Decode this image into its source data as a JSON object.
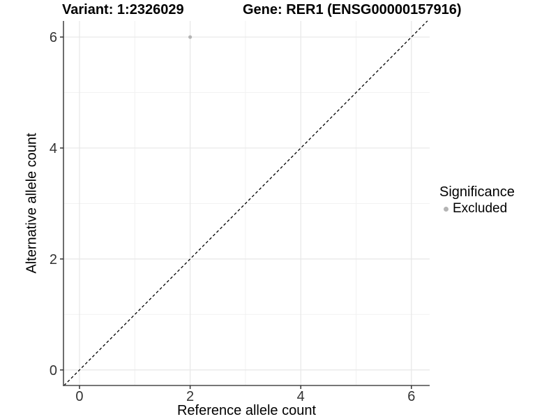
{
  "chart_data": {
    "type": "scatter",
    "title_left": "Variant: 1:2326029",
    "title_right": "Gene: RER1 (ENSG00000157916)",
    "xlabel": "Reference allele count",
    "ylabel": "Alternative allele count",
    "xlim": [
      -0.29,
      6.33
    ],
    "ylim": [
      -0.28,
      6.29
    ],
    "x_ticks": [
      0,
      2,
      4,
      6
    ],
    "y_ticks": [
      0,
      2,
      4,
      6
    ],
    "x_minor_ticks": [
      1,
      3,
      5
    ],
    "y_minor_ticks": [
      1,
      3,
      5
    ],
    "grid": true,
    "legend_position": "right",
    "series": [
      {
        "name": "Excluded",
        "color": "#b4b4b4",
        "points": [
          {
            "x": 2,
            "y": 6
          }
        ]
      }
    ],
    "reference_line": {
      "type": "identity",
      "equation": "y = x",
      "style": "dashed",
      "color": "#000000"
    }
  },
  "legend": {
    "title": "Significance",
    "items": [
      {
        "label": "Excluded",
        "color": "#b4b4b4"
      }
    ]
  },
  "colors": {
    "background": "#ffffff",
    "grid_major": "#e7e7e7",
    "grid_minor": "#f2f2f2",
    "axis_line": "#4a4a4a",
    "tick_mark": "#333333",
    "tick_label": "#333333",
    "point": "#b4b4b4",
    "dashed_line": "#000000"
  }
}
